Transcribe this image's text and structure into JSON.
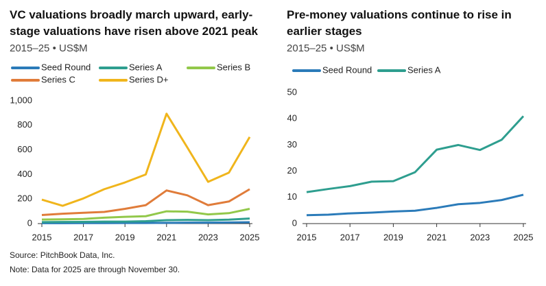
{
  "chart_data": [
    {
      "type": "line",
      "title": "VC valuations broadly march upward, early-stage valuations have risen above 2021 peak",
      "subtitle": "2015–25 • US$M",
      "x": [
        2015,
        2016,
        2017,
        2018,
        2019,
        2020,
        2021,
        2022,
        2023,
        2024,
        2025
      ],
      "xlim": [
        2015,
        2025
      ],
      "xticks": [
        2015,
        2017,
        2019,
        2021,
        2023,
        2025
      ],
      "ylim": [
        0,
        1000
      ],
      "yticks": [
        0,
        200,
        400,
        600,
        800,
        {
          "value": 1000,
          "label": "1,000"
        }
      ],
      "grid": false,
      "series": [
        {
          "name": "Seed Round",
          "color": "#2b7bb9",
          "values": [
            3.2,
            3.4,
            3.9,
            4.2,
            4.6,
            4.9,
            6,
            7.4,
            7.9,
            9,
            11
          ]
        },
        {
          "name": "Series A",
          "color": "#2e9e8f",
          "values": [
            12,
            13.2,
            14.3,
            16,
            16.2,
            19.6,
            28.2,
            30,
            28.1,
            32,
            41
          ]
        },
        {
          "name": "Series B",
          "color": "#92c84a",
          "values": [
            33,
            35,
            38,
            48,
            55,
            60,
            100,
            97,
            75,
            85,
            120
          ]
        },
        {
          "name": "Series C",
          "color": "#e07c3a",
          "values": [
            70,
            80,
            88,
            95,
            120,
            150,
            270,
            230,
            150,
            180,
            280
          ]
        },
        {
          "name": "Series D+",
          "color": "#f0b51c",
          "values": [
            195,
            145,
            205,
            280,
            335,
            400,
            895,
            620,
            340,
            415,
            705
          ]
        }
      ]
    },
    {
      "type": "line",
      "title": "Pre-money valuations continue to rise in earlier stages",
      "subtitle": "2015–25 • US$M",
      "x": [
        2015,
        2016,
        2017,
        2018,
        2019,
        2020,
        2021,
        2022,
        2023,
        2024,
        2025
      ],
      "xlim": [
        2015,
        2025
      ],
      "xticks": [
        2015,
        2017,
        2019,
        2021,
        2023,
        2025
      ],
      "ylim": [
        0,
        50
      ],
      "yticks": [
        0,
        10,
        20,
        30,
        40,
        50
      ],
      "grid": false,
      "series": [
        {
          "name": "Seed Round",
          "color": "#2b7bb9",
          "values": [
            3.2,
            3.4,
            3.9,
            4.2,
            4.6,
            4.9,
            6,
            7.4,
            7.9,
            9,
            11
          ]
        },
        {
          "name": "Series A",
          "color": "#2e9e8f",
          "values": [
            12,
            13.2,
            14.3,
            16,
            16.2,
            19.6,
            28.2,
            30,
            28.1,
            32,
            41
          ]
        }
      ]
    }
  ],
  "source": "Source: PitchBook Data, Inc.",
  "note": "Note: Data for 2025 are through November 30."
}
